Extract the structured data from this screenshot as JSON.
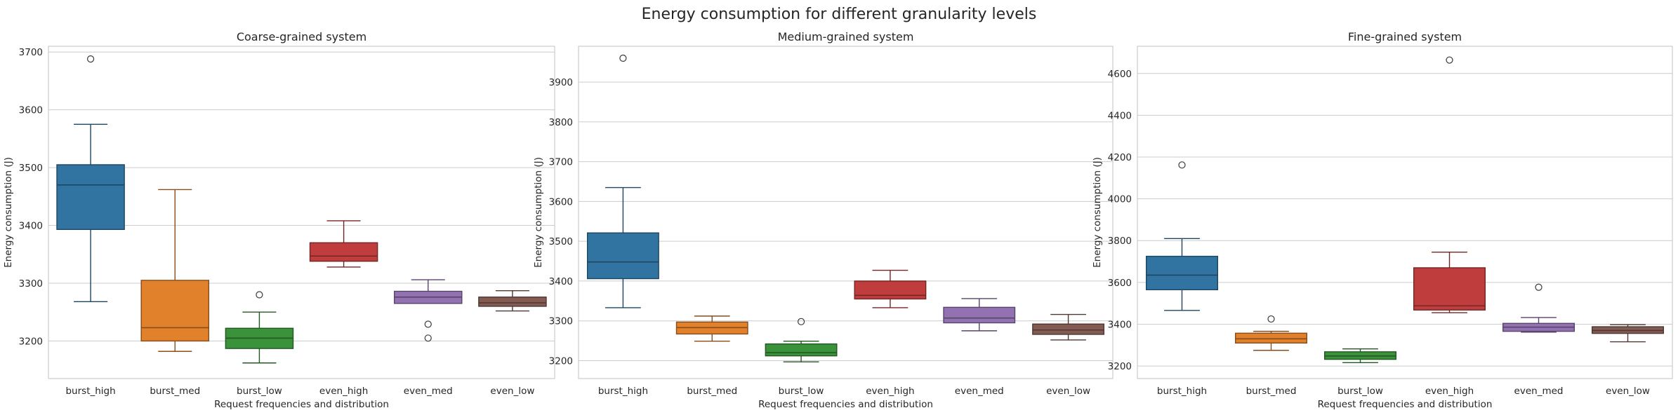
{
  "figure": {
    "title": "Energy consumption for different granularity levels"
  },
  "chart_data": [
    {
      "type": "box",
      "title": "Coarse-grained system",
      "xlabel": "Request frequencies and distribution",
      "ylabel": "Energy consumption (J)",
      "ylim": [
        3135,
        3710
      ],
      "yticks": [
        3200,
        3300,
        3400,
        3500,
        3600,
        3700
      ],
      "grid": true,
      "categories": [
        "burst_high",
        "burst_med",
        "burst_low",
        "even_high",
        "even_med",
        "even_low"
      ],
      "colors": [
        "#3274a1",
        "#e1812c",
        "#3a923a",
        "#c03d3e",
        "#9372b2",
        "#845b53"
      ],
      "boxes": [
        {
          "whisker_low": 3268,
          "q1": 3393,
          "median": 3470,
          "q3": 3505,
          "whisker_high": 3575,
          "outliers": [
            3688
          ]
        },
        {
          "whisker_low": 3182,
          "q1": 3200,
          "median": 3223,
          "q3": 3305,
          "whisker_high": 3462,
          "outliers": []
        },
        {
          "whisker_low": 3162,
          "q1": 3187,
          "median": 3205,
          "q3": 3222,
          "whisker_high": 3250,
          "outliers": [
            3280
          ]
        },
        {
          "whisker_low": 3328,
          "q1": 3338,
          "median": 3347,
          "q3": 3370,
          "whisker_high": 3408,
          "outliers": []
        },
        {
          "whisker_low": 3265,
          "q1": 3265,
          "median": 3276,
          "q3": 3286,
          "whisker_high": 3306,
          "outliers": [
            3229,
            3205
          ]
        },
        {
          "whisker_low": 3252,
          "q1": 3260,
          "median": 3266,
          "q3": 3276,
          "whisker_high": 3287,
          "outliers": []
        }
      ]
    },
    {
      "type": "box",
      "title": "Medium-grained system",
      "xlabel": "Request frequencies and distribution",
      "ylabel": "Energy consumption (J)",
      "ylim": [
        3155,
        3990
      ],
      "yticks": [
        3200,
        3300,
        3400,
        3500,
        3600,
        3700,
        3800,
        3900
      ],
      "grid": true,
      "categories": [
        "burst_high",
        "burst_med",
        "burst_low",
        "even_high",
        "even_med",
        "even_low"
      ],
      "colors": [
        "#3274a1",
        "#e1812c",
        "#3a923a",
        "#c03d3e",
        "#9372b2",
        "#845b53"
      ],
      "boxes": [
        {
          "whisker_low": 3333,
          "q1": 3406,
          "median": 3448,
          "q3": 3521,
          "whisker_high": 3635,
          "outliers": [
            3960
          ]
        },
        {
          "whisker_low": 3249,
          "q1": 3267,
          "median": 3283,
          "q3": 3297,
          "whisker_high": 3312,
          "outliers": []
        },
        {
          "whisker_low": 3197,
          "q1": 3212,
          "median": 3220,
          "q3": 3242,
          "whisker_high": 3249,
          "outliers": [
            3298
          ]
        },
        {
          "whisker_low": 3333,
          "q1": 3355,
          "median": 3364,
          "q3": 3400,
          "whisker_high": 3427,
          "outliers": []
        },
        {
          "whisker_low": 3275,
          "q1": 3295,
          "median": 3307,
          "q3": 3334,
          "whisker_high": 3356,
          "outliers": []
        },
        {
          "whisker_low": 3252,
          "q1": 3266,
          "median": 3277,
          "q3": 3292,
          "whisker_high": 3316,
          "outliers": []
        }
      ]
    },
    {
      "type": "box",
      "title": "Fine-grained system",
      "xlabel": "Request frequencies and distribution",
      "ylabel": "Energy consumption (J)",
      "ylim": [
        3140,
        4730
      ],
      "yticks": [
        3200,
        3400,
        3600,
        3800,
        4000,
        4200,
        4400,
        4600
      ],
      "grid": true,
      "categories": [
        "burst_high",
        "burst_med",
        "burst_low",
        "even_high",
        "even_med",
        "even_low"
      ],
      "colors": [
        "#3274a1",
        "#e1812c",
        "#3a923a",
        "#c03d3e",
        "#9372b2",
        "#845b53"
      ],
      "boxes": [
        {
          "whisker_low": 3466,
          "q1": 3565,
          "median": 3635,
          "q3": 3725,
          "whisker_high": 3810,
          "outliers": [
            4162
          ]
        },
        {
          "whisker_low": 3275,
          "q1": 3310,
          "median": 3330,
          "q3": 3357,
          "whisker_high": 3366,
          "outliers": [
            3425
          ]
        },
        {
          "whisker_low": 3216,
          "q1": 3232,
          "median": 3248,
          "q3": 3268,
          "whisker_high": 3282,
          "outliers": []
        },
        {
          "whisker_low": 3455,
          "q1": 3468,
          "median": 3488,
          "q3": 3670,
          "whisker_high": 3745,
          "outliers": [
            4664
          ]
        },
        {
          "whisker_low": 3362,
          "q1": 3366,
          "median": 3386,
          "q3": 3404,
          "whisker_high": 3432,
          "outliers": [
            3577
          ]
        },
        {
          "whisker_low": 3316,
          "q1": 3356,
          "median": 3370,
          "q3": 3388,
          "whisker_high": 3398,
          "outliers": []
        }
      ]
    }
  ]
}
